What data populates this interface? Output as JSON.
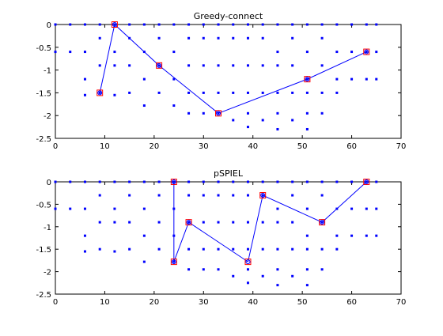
{
  "colors": {
    "background": "#ffffff",
    "axes": "#000000",
    "points": "#0000ff",
    "path_line": "#0000ff",
    "selected_marker": "#ff0000"
  },
  "chart_data": [
    {
      "type": "scatter",
      "title": "Greedy-connect",
      "xlabel": "",
      "ylabel": "",
      "xlim": [
        0,
        70
      ],
      "ylim": [
        -2.5,
        0
      ],
      "xticks": [
        0,
        10,
        20,
        30,
        40,
        50,
        60,
        70
      ],
      "yticks": [
        0,
        -0.5,
        -1,
        -1.5,
        -2,
        -2.5
      ],
      "grid": false,
      "legend": "none",
      "series": [
        {
          "role": "candidate_locations",
          "marker": "dot",
          "color": "#0000ff",
          "points": [
            [
              0,
              0
            ],
            [
              3,
              0
            ],
            [
              6,
              0
            ],
            [
              9,
              0
            ],
            [
              12,
              0
            ],
            [
              15,
              0
            ],
            [
              18,
              0
            ],
            [
              21,
              0
            ],
            [
              24,
              0
            ],
            [
              27,
              0
            ],
            [
              30,
              0
            ],
            [
              33,
              0
            ],
            [
              36,
              0
            ],
            [
              39,
              0
            ],
            [
              42,
              0
            ],
            [
              45,
              0
            ],
            [
              48,
              0
            ],
            [
              51,
              0
            ],
            [
              54,
              0
            ],
            [
              57,
              0
            ],
            [
              60,
              0
            ],
            [
              63,
              0
            ],
            [
              65,
              0
            ],
            [
              0,
              -0.6
            ],
            [
              3,
              -0.6
            ],
            [
              6,
              -0.6
            ],
            [
              9,
              -0.3
            ],
            [
              12,
              -0.6
            ],
            [
              15,
              -0.3
            ],
            [
              18,
              -0.6
            ],
            [
              21,
              -0.3
            ],
            [
              24,
              -0.6
            ],
            [
              27,
              -0.3
            ],
            [
              30,
              -0.3
            ],
            [
              33,
              -0.3
            ],
            [
              36,
              -0.3
            ],
            [
              39,
              -0.3
            ],
            [
              42,
              -0.3
            ],
            [
              45,
              -0.6
            ],
            [
              48,
              -0.3
            ],
            [
              51,
              -0.6
            ],
            [
              54,
              -0.3
            ],
            [
              57,
              -0.6
            ],
            [
              60,
              -0.6
            ],
            [
              63,
              -0.6
            ],
            [
              65,
              -0.6
            ],
            [
              6,
              -1.2
            ],
            [
              9,
              -0.9
            ],
            [
              12,
              -0.9
            ],
            [
              15,
              -0.9
            ],
            [
              18,
              -1.2
            ],
            [
              21,
              -0.9
            ],
            [
              24,
              -1.2
            ],
            [
              27,
              -0.9
            ],
            [
              30,
              -0.9
            ],
            [
              33,
              -0.9
            ],
            [
              36,
              -0.9
            ],
            [
              39,
              -0.9
            ],
            [
              42,
              -0.9
            ],
            [
              45,
              -0.9
            ],
            [
              48,
              -0.9
            ],
            [
              51,
              -1.2
            ],
            [
              54,
              -0.9
            ],
            [
              57,
              -1.2
            ],
            [
              60,
              -1.2
            ],
            [
              63,
              -1.2
            ],
            [
              65,
              -1.2
            ],
            [
              6,
              -1.55
            ],
            [
              9,
              -1.5
            ],
            [
              12,
              -1.55
            ],
            [
              15,
              -1.5
            ],
            [
              18,
              -1.78
            ],
            [
              21,
              -1.5
            ],
            [
              24,
              -1.78
            ],
            [
              27,
              -1.5
            ],
            [
              30,
              -1.5
            ],
            [
              33,
              -1.5
            ],
            [
              36,
              -1.5
            ],
            [
              39,
              -1.5
            ],
            [
              42,
              -1.5
            ],
            [
              45,
              -1.5
            ],
            [
              48,
              -1.5
            ],
            [
              51,
              -1.5
            ],
            [
              54,
              -1.5
            ],
            [
              57,
              -1.5
            ],
            [
              27,
              -1.95
            ],
            [
              30,
              -1.95
            ],
            [
              33,
              -1.95
            ],
            [
              36,
              -2.1
            ],
            [
              39,
              -1.95
            ],
            [
              42,
              -2.1
            ],
            [
              45,
              -1.95
            ],
            [
              48,
              -2.1
            ],
            [
              51,
              -1.95
            ],
            [
              54,
              -1.95
            ],
            [
              39,
              -2.25
            ],
            [
              45,
              -2.3
            ],
            [
              51,
              -2.3
            ]
          ]
        },
        {
          "role": "selected_path",
          "marker": "square-circle",
          "color": "#0000ff",
          "marker_color": "#ff0000",
          "points": [
            [
              9,
              -1.5
            ],
            [
              12,
              0
            ],
            [
              21,
              -0.9
            ],
            [
              33,
              -1.95
            ],
            [
              51,
              -1.2
            ],
            [
              63,
              -0.6
            ]
          ]
        }
      ]
    },
    {
      "type": "scatter",
      "title": "pSPIEL",
      "xlabel": "",
      "ylabel": "",
      "xlim": [
        0,
        70
      ],
      "ylim": [
        -2.5,
        0
      ],
      "xticks": [
        0,
        10,
        20,
        30,
        40,
        50,
        60,
        70
      ],
      "yticks": [
        0,
        -0.5,
        -1,
        -1.5,
        -2,
        -2.5
      ],
      "grid": false,
      "legend": "none",
      "series": [
        {
          "role": "candidate_locations",
          "marker": "dot",
          "color": "#0000ff",
          "points": [
            [
              0,
              0
            ],
            [
              3,
              0
            ],
            [
              6,
              0
            ],
            [
              9,
              0
            ],
            [
              12,
              0
            ],
            [
              15,
              0
            ],
            [
              18,
              0
            ],
            [
              21,
              0
            ],
            [
              24,
              0
            ],
            [
              27,
              0
            ],
            [
              30,
              0
            ],
            [
              33,
              0
            ],
            [
              36,
              0
            ],
            [
              39,
              0
            ],
            [
              42,
              0
            ],
            [
              45,
              0
            ],
            [
              48,
              0
            ],
            [
              51,
              0
            ],
            [
              54,
              0
            ],
            [
              57,
              0
            ],
            [
              60,
              0
            ],
            [
              63,
              0
            ],
            [
              65,
              0
            ],
            [
              0,
              -0.6
            ],
            [
              3,
              -0.6
            ],
            [
              6,
              -0.6
            ],
            [
              9,
              -0.3
            ],
            [
              12,
              -0.6
            ],
            [
              15,
              -0.3
            ],
            [
              18,
              -0.6
            ],
            [
              21,
              -0.3
            ],
            [
              24,
              -0.6
            ],
            [
              27,
              -0.3
            ],
            [
              30,
              -0.3
            ],
            [
              33,
              -0.3
            ],
            [
              36,
              -0.3
            ],
            [
              39,
              -0.3
            ],
            [
              42,
              -0.3
            ],
            [
              45,
              -0.6
            ],
            [
              48,
              -0.3
            ],
            [
              51,
              -0.6
            ],
            [
              54,
              -0.3
            ],
            [
              57,
              -0.6
            ],
            [
              60,
              -0.6
            ],
            [
              63,
              -0.6
            ],
            [
              65,
              -0.6
            ],
            [
              6,
              -1.2
            ],
            [
              9,
              -0.9
            ],
            [
              12,
              -0.9
            ],
            [
              15,
              -0.9
            ],
            [
              18,
              -1.2
            ],
            [
              21,
              -0.9
            ],
            [
              24,
              -1.2
            ],
            [
              27,
              -0.9
            ],
            [
              30,
              -0.9
            ],
            [
              33,
              -0.9
            ],
            [
              36,
              -0.9
            ],
            [
              39,
              -0.9
            ],
            [
              42,
              -0.9
            ],
            [
              45,
              -0.9
            ],
            [
              48,
              -0.9
            ],
            [
              51,
              -1.2
            ],
            [
              54,
              -0.9
            ],
            [
              57,
              -1.2
            ],
            [
              60,
              -1.2
            ],
            [
              63,
              -1.2
            ],
            [
              65,
              -1.2
            ],
            [
              6,
              -1.55
            ],
            [
              9,
              -1.5
            ],
            [
              12,
              -1.55
            ],
            [
              15,
              -1.5
            ],
            [
              18,
              -1.78
            ],
            [
              21,
              -1.5
            ],
            [
              24,
              -1.78
            ],
            [
              27,
              -1.5
            ],
            [
              30,
              -1.5
            ],
            [
              33,
              -1.5
            ],
            [
              36,
              -1.5
            ],
            [
              39,
              -1.5
            ],
            [
              42,
              -1.5
            ],
            [
              45,
              -1.5
            ],
            [
              48,
              -1.5
            ],
            [
              51,
              -1.5
            ],
            [
              54,
              -1.5
            ],
            [
              57,
              -1.5
            ],
            [
              27,
              -1.95
            ],
            [
              30,
              -1.95
            ],
            [
              33,
              -1.95
            ],
            [
              36,
              -2.1
            ],
            [
              39,
              -1.95
            ],
            [
              42,
              -2.1
            ],
            [
              45,
              -1.95
            ],
            [
              48,
              -2.1
            ],
            [
              51,
              -1.95
            ],
            [
              54,
              -1.95
            ],
            [
              39,
              -2.25
            ],
            [
              45,
              -2.3
            ],
            [
              51,
              -2.3
            ]
          ]
        },
        {
          "role": "selected_path",
          "marker": "square-circle",
          "color": "#0000ff",
          "marker_color": "#ff0000",
          "points": [
            [
              24,
              0
            ],
            [
              24,
              -1.78
            ],
            [
              27,
              -0.9
            ],
            [
              39,
              -1.78
            ],
            [
              42,
              -0.3
            ],
            [
              54,
              -0.9
            ],
            [
              63,
              0
            ]
          ]
        }
      ]
    }
  ]
}
